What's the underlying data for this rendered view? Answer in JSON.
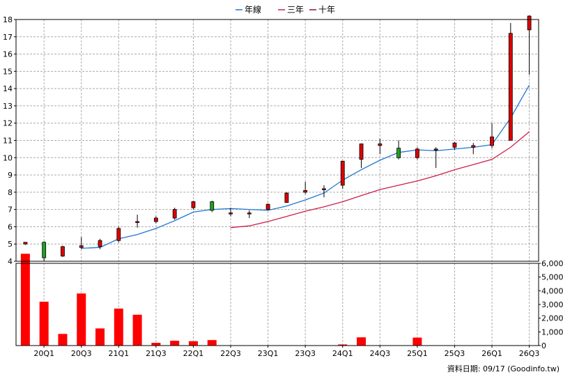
{
  "chart_data": {
    "type": "candlestick",
    "legend": [
      {
        "label": "年線",
        "color": "#1f77d0"
      },
      {
        "label": "三年",
        "color": "#cc1f4a"
      },
      {
        "label": "十年",
        "color": "#8b1040"
      }
    ],
    "colors": {
      "up": "#e00000",
      "down": "#22a022",
      "volume": "#ff0000",
      "grid": "#aaaaaa"
    },
    "price_axis": {
      "min": 4,
      "max": 18,
      "ticks": [
        "4",
        "5",
        "6",
        "7",
        "8",
        "9",
        "10",
        "11",
        "12",
        "13",
        "14",
        "15",
        "16",
        "17",
        "18"
      ]
    },
    "volume_axis": {
      "min": 0,
      "max": 6000,
      "ticks": [
        "0",
        "1,000",
        "2,000",
        "3,000",
        "4,000",
        "5,000",
        "6,000"
      ]
    },
    "x_labels": [
      {
        "i": 1,
        "label": "20Q1"
      },
      {
        "i": 3,
        "label": "20Q3"
      },
      {
        "i": 5,
        "label": "21Q1"
      },
      {
        "i": 7,
        "label": "21Q3"
      },
      {
        "i": 9,
        "label": "22Q1"
      },
      {
        "i": 11,
        "label": "22Q3"
      },
      {
        "i": 13,
        "label": "23Q1"
      },
      {
        "i": 15,
        "label": "23Q3"
      },
      {
        "i": 17,
        "label": "24Q1"
      },
      {
        "i": 19,
        "label": "24Q3"
      },
      {
        "i": 21,
        "label": "25Q1"
      },
      {
        "i": 23,
        "label": "25Q3"
      },
      {
        "i": 25,
        "label": "26Q1"
      },
      {
        "i": 27,
        "label": "26Q3"
      }
    ],
    "candles": [
      {
        "o": 5.0,
        "h": 5.1,
        "l": 4.95,
        "c": 5.1
      },
      {
        "o": 5.1,
        "h": 5.15,
        "l": 4.0,
        "c": 4.2
      },
      {
        "o": 4.3,
        "h": 4.9,
        "l": 4.25,
        "c": 4.85
      },
      {
        "o": 4.8,
        "h": 5.4,
        "l": 4.7,
        "c": 4.9
      },
      {
        "o": 4.85,
        "h": 5.3,
        "l": 4.7,
        "c": 5.2
      },
      {
        "o": 5.2,
        "h": 6.0,
        "l": 5.1,
        "c": 5.9
      },
      {
        "o": 6.3,
        "h": 6.7,
        "l": 5.95,
        "c": 6.3
      },
      {
        "o": 6.3,
        "h": 6.6,
        "l": 6.2,
        "c": 6.5
      },
      {
        "o": 6.5,
        "h": 7.1,
        "l": 6.4,
        "c": 7.0
      },
      {
        "o": 7.1,
        "h": 7.5,
        "l": 7.0,
        "c": 7.45
      },
      {
        "o": 7.45,
        "h": 7.5,
        "l": 6.85,
        "c": 6.95
      },
      {
        "o": 6.8,
        "h": 7.1,
        "l": 6.6,
        "c": 6.8
      },
      {
        "o": 6.8,
        "h": 6.95,
        "l": 6.5,
        "c": 6.8
      },
      {
        "o": 7.0,
        "h": 7.35,
        "l": 6.95,
        "c": 7.3
      },
      {
        "o": 7.4,
        "h": 8.0,
        "l": 7.4,
        "c": 7.95
      },
      {
        "o": 8.0,
        "h": 8.6,
        "l": 7.9,
        "c": 8.1
      },
      {
        "o": 8.2,
        "h": 8.4,
        "l": 7.7,
        "c": 8.2
      },
      {
        "o": 8.4,
        "h": 9.8,
        "l": 8.2,
        "c": 9.8
      },
      {
        "o": 9.9,
        "h": 10.8,
        "l": 9.4,
        "c": 10.8
      },
      {
        "o": 10.7,
        "h": 11.1,
        "l": 10.2,
        "c": 10.8
      },
      {
        "o": 10.55,
        "h": 11.0,
        "l": 9.9,
        "c": 10.0
      },
      {
        "o": 10.0,
        "h": 10.6,
        "l": 9.9,
        "c": 10.5
      },
      {
        "o": 10.5,
        "h": 10.6,
        "l": 9.4,
        "c": 10.5
      },
      {
        "o": 10.6,
        "h": 10.9,
        "l": 10.45,
        "c": 10.85
      },
      {
        "o": 10.6,
        "h": 10.85,
        "l": 10.2,
        "c": 10.7
      },
      {
        "o": 10.7,
        "h": 12.0,
        "l": 10.55,
        "c": 11.2
      },
      {
        "o": 11.0,
        "h": 17.8,
        "l": 11.0,
        "c": 17.2
      },
      {
        "o": 17.4,
        "h": 18.25,
        "l": 14.8,
        "c": 18.2
      }
    ],
    "volumes": [
      6700,
      3200,
      850,
      3800,
      1250,
      2700,
      2250,
      200,
      350,
      320,
      400,
      20,
      20,
      20,
      20,
      20,
      20,
      80,
      600,
      20,
      20,
      580,
      20,
      20,
      20,
      20,
      20,
      20
    ],
    "ma_year": [
      null,
      null,
      null,
      4.75,
      4.8,
      5.3,
      5.55,
      5.9,
      6.35,
      6.85,
      7.0,
      7.05,
      7.0,
      6.95,
      7.2,
      7.55,
      7.95,
      8.7,
      9.3,
      9.85,
      10.3,
      10.45,
      10.4,
      10.5,
      10.6,
      10.75,
      12.3,
      14.2
    ],
    "ma_3year": [
      null,
      null,
      null,
      null,
      null,
      null,
      null,
      null,
      null,
      null,
      null,
      5.95,
      6.05,
      6.3,
      6.6,
      6.9,
      7.15,
      7.45,
      7.8,
      8.15,
      8.4,
      8.65,
      8.95,
      9.3,
      9.6,
      9.9,
      10.6,
      11.5
    ],
    "footer": "資料日期: 09/17  (Goodinfo.tw)"
  }
}
